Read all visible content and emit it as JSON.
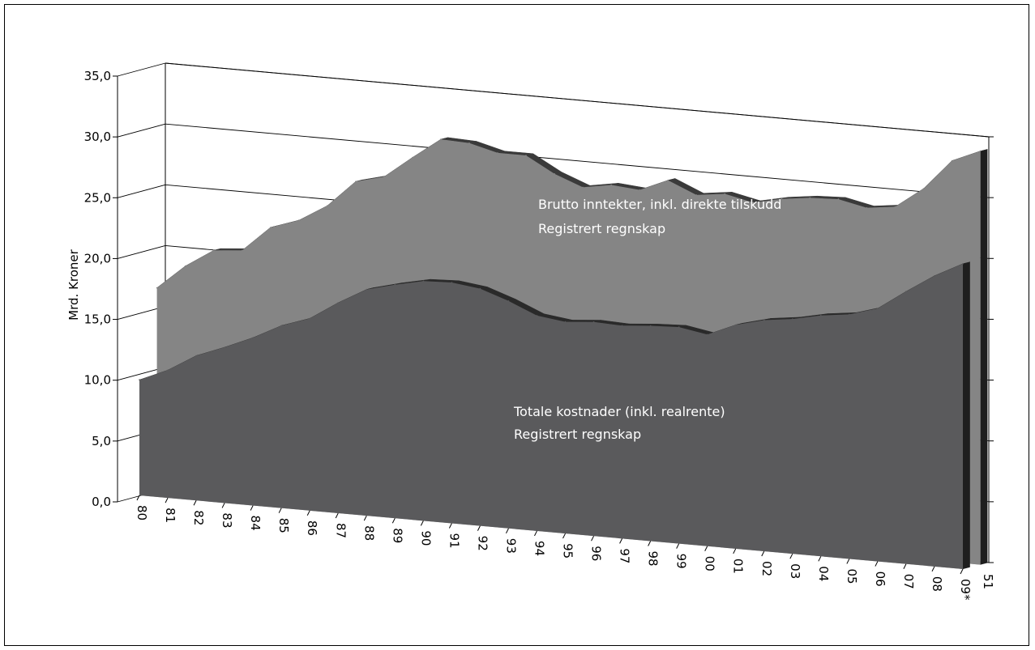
{
  "chart_data": {
    "type": "area",
    "title": "",
    "xlabel": "",
    "ylabel": "Mrd. Kroner",
    "ylim": [
      0,
      35
    ],
    "yticks": [
      "0,0",
      "5,0",
      "10,0",
      "15,0",
      "20,0",
      "25,0",
      "30,0",
      "35,0"
    ],
    "categories": [
      "80",
      "81",
      "82",
      "83",
      "84",
      "85",
      "86",
      "87",
      "88",
      "89",
      "90",
      "91",
      "92",
      "93",
      "94",
      "95",
      "96",
      "97",
      "98",
      "99",
      "00",
      "01",
      "02",
      "03",
      "04",
      "05",
      "06",
      "07",
      "08",
      "09*"
    ],
    "depth_labels": [
      "51"
    ],
    "grid": true,
    "three_d": true,
    "series": [
      {
        "name": "Brutto inntekter, inkl. direkte tilskudd",
        "color": "#858585",
        "values": [
          16.7,
          18.7,
          20.2,
          20.4,
          22.5,
          23.3,
          24.7,
          26.9,
          27.5,
          29.3,
          31.0,
          30.9,
          30.3,
          30.3,
          29.0,
          28.1,
          28.5,
          28.3,
          29.3,
          28.3,
          28.6,
          28.1,
          28.6,
          28.9,
          29.0,
          28.5,
          28.8,
          30.5,
          33.0,
          34.0
        ]
      },
      {
        "name": "Totale kostnader (inkl. realrente)",
        "color": "#5a5a5c",
        "values": [
          9.5,
          10.5,
          11.9,
          12.8,
          13.8,
          15.0,
          15.8,
          17.3,
          18.6,
          19.2,
          19.7,
          19.8,
          19.5,
          18.7,
          17.7,
          17.4,
          17.6,
          17.5,
          17.7,
          17.8,
          17.4,
          18.4,
          19.0,
          19.3,
          19.8,
          20.1,
          20.8,
          22.4,
          23.9,
          25.1
        ]
      }
    ],
    "annotations": [
      {
        "series": "Brutto inntekter, inkl. direkte tilskudd",
        "lines": [
          "Brutto inntekter, inkl. direkte tilskudd",
          "Registrert regnskap"
        ]
      },
      {
        "series": "Totale kostnader (inkl. realrente)",
        "lines": [
          "Totale kostnader (inkl. realrente)",
          "Registrert regnskap"
        ]
      }
    ]
  }
}
